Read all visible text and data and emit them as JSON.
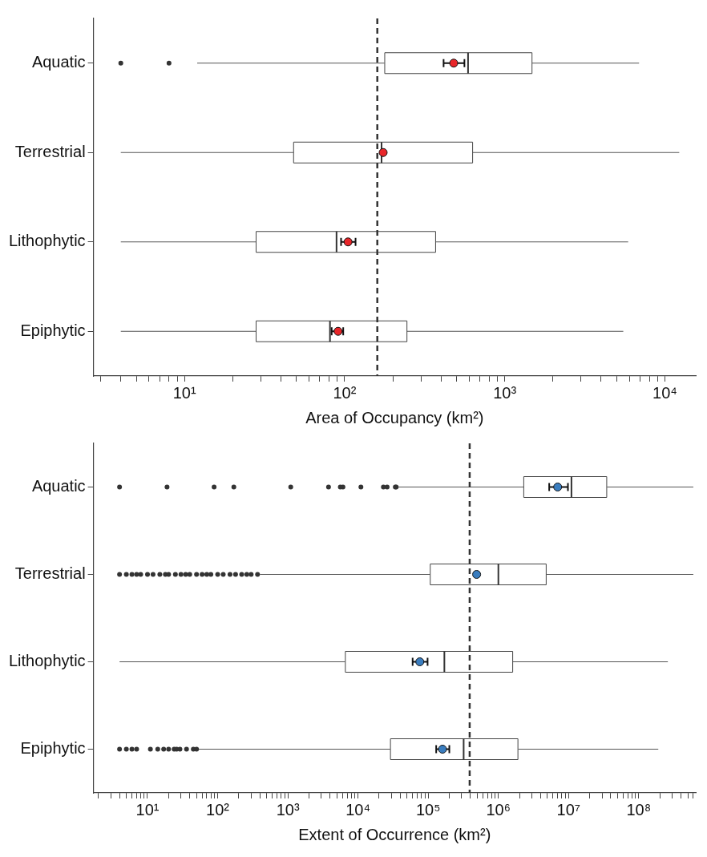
{
  "chart_data": [
    {
      "type": "box",
      "orientation": "horizontal",
      "log": "x",
      "xlabel": "Area of Occupancy (km²)",
      "categories": [
        "Aquatic",
        "Terrestrial",
        "Lithophytic",
        "Epiphytic"
      ],
      "xlim": [
        2.7,
        15600
      ],
      "xticks": [
        {
          "value": 3,
          "label": null
        },
        {
          "value": 4,
          "label": null
        },
        {
          "value": 5,
          "label": null
        },
        {
          "value": 6,
          "label": null
        },
        {
          "value": 7,
          "label": null
        },
        {
          "value": 8,
          "label": null
        },
        {
          "value": 9,
          "label": null
        },
        {
          "value": 10,
          "label": "10¹"
        },
        {
          "value": 20,
          "label": null
        },
        {
          "value": 30,
          "label": null
        },
        {
          "value": 40,
          "label": null
        },
        {
          "value": 50,
          "label": null
        },
        {
          "value": 60,
          "label": null
        },
        {
          "value": 70,
          "label": null
        },
        {
          "value": 80,
          "label": null
        },
        {
          "value": 90,
          "label": null
        },
        {
          "value": 100,
          "label": "10²"
        },
        {
          "value": 200,
          "label": null
        },
        {
          "value": 300,
          "label": null
        },
        {
          "value": 400,
          "label": null
        },
        {
          "value": 500,
          "label": null
        },
        {
          "value": 600,
          "label": null
        },
        {
          "value": 700,
          "label": null
        },
        {
          "value": 800,
          "label": null
        },
        {
          "value": 900,
          "label": null
        },
        {
          "value": 1000,
          "label": "10³"
        },
        {
          "value": 2000,
          "label": null
        },
        {
          "value": 3000,
          "label": null
        },
        {
          "value": 4000,
          "label": null
        },
        {
          "value": 5000,
          "label": null
        },
        {
          "value": 6000,
          "label": null
        },
        {
          "value": 7000,
          "label": null
        },
        {
          "value": 8000,
          "label": null
        },
        {
          "value": 9000,
          "label": null
        },
        {
          "value": 10000,
          "label": "10⁴"
        }
      ],
      "ref_lines": [
        {
          "axis": "x",
          "value": 160,
          "line_style": "dashed",
          "color": "#333333"
        }
      ],
      "series": [
        {
          "type": "box",
          "color": "#ffffff",
          "boxes": [
            {
              "low": 12,
              "q1": 178,
              "median": 590,
              "q3": 1480,
              "high": 6900,
              "outliers": [
                4,
                8
              ]
            },
            {
              "low": 4,
              "q1": 48,
              "median": 170,
              "q3": 630,
              "high": 12300
            },
            {
              "low": 4,
              "q1": 28,
              "median": 89,
              "q3": 370,
              "high": 5900
            },
            {
              "low": 4,
              "q1": 28,
              "median": 81,
              "q3": 245,
              "high": 5500
            }
          ]
        },
        {
          "type": "scatter",
          "color": "#e8262a",
          "x": [
            "Aquatic",
            "Terrestrial",
            "Lithophytic",
            "Epiphytic"
          ],
          "values": [
            480,
            174,
            105,
            91
          ],
          "errors": [
            [
              415,
              560
            ],
            null,
            [
              95,
              117
            ],
            [
              83,
              98
            ]
          ]
        }
      ]
    },
    {
      "type": "box",
      "orientation": "horizontal",
      "log": "x",
      "xlabel": "Extent of Occurrence (km²)",
      "categories": [
        "Aquatic",
        "Terrestrial",
        "Lithophytic",
        "Epiphytic"
      ],
      "xlim": [
        1.7,
        650000000
      ],
      "xticks": [
        {
          "value": 2,
          "label": null
        },
        {
          "value": 3,
          "label": null
        },
        {
          "value": 4,
          "label": null
        },
        {
          "value": 5,
          "label": null
        },
        {
          "value": 6,
          "label": null
        },
        {
          "value": 7,
          "label": null
        },
        {
          "value": 8,
          "label": null
        },
        {
          "value": 9,
          "label": null
        },
        {
          "value": 10,
          "label": "10¹"
        },
        {
          "value": 20,
          "label": null
        },
        {
          "value": 30,
          "label": null
        },
        {
          "value": 40,
          "label": null
        },
        {
          "value": 50,
          "label": null
        },
        {
          "value": 60,
          "label": null
        },
        {
          "value": 70,
          "label": null
        },
        {
          "value": 80,
          "label": null
        },
        {
          "value": 90,
          "label": null
        },
        {
          "value": 100,
          "label": "10²"
        },
        {
          "value": 200,
          "label": null
        },
        {
          "value": 300,
          "label": null
        },
        {
          "value": 400,
          "label": null
        },
        {
          "value": 500,
          "label": null
        },
        {
          "value": 600,
          "label": null
        },
        {
          "value": 700,
          "label": null
        },
        {
          "value": 800,
          "label": null
        },
        {
          "value": 900,
          "label": null
        },
        {
          "value": 1000,
          "label": "10³"
        },
        {
          "value": 2000,
          "label": null
        },
        {
          "value": 3000,
          "label": null
        },
        {
          "value": 4000,
          "label": null
        },
        {
          "value": 5000,
          "label": null
        },
        {
          "value": 6000,
          "label": null
        },
        {
          "value": 7000,
          "label": null
        },
        {
          "value": 8000,
          "label": null
        },
        {
          "value": 9000,
          "label": null
        },
        {
          "value": 10000,
          "label": "10⁴"
        },
        {
          "value": 20000,
          "label": null
        },
        {
          "value": 30000,
          "label": null
        },
        {
          "value": 40000,
          "label": null
        },
        {
          "value": 50000,
          "label": null
        },
        {
          "value": 60000,
          "label": null
        },
        {
          "value": 70000,
          "label": null
        },
        {
          "value": 80000,
          "label": null
        },
        {
          "value": 90000,
          "label": null
        },
        {
          "value": 100000,
          "label": "10⁵"
        },
        {
          "value": 200000,
          "label": null
        },
        {
          "value": 300000,
          "label": null
        },
        {
          "value": 400000,
          "label": null
        },
        {
          "value": 500000,
          "label": null
        },
        {
          "value": 600000,
          "label": null
        },
        {
          "value": 700000,
          "label": null
        },
        {
          "value": 800000,
          "label": null
        },
        {
          "value": 900000,
          "label": null
        },
        {
          "value": 1000000,
          "label": "10⁶"
        },
        {
          "value": 2000000,
          "label": null
        },
        {
          "value": 3000000,
          "label": null
        },
        {
          "value": 4000000,
          "label": null
        },
        {
          "value": 5000000,
          "label": null
        },
        {
          "value": 6000000,
          "label": null
        },
        {
          "value": 7000000,
          "label": null
        },
        {
          "value": 8000000,
          "label": null
        },
        {
          "value": 9000000,
          "label": null
        },
        {
          "value": 10000000,
          "label": "10⁷"
        },
        {
          "value": 20000000,
          "label": null
        },
        {
          "value": 30000000,
          "label": null
        },
        {
          "value": 40000000,
          "label": null
        },
        {
          "value": 50000000,
          "label": null
        },
        {
          "value": 60000000,
          "label": null
        },
        {
          "value": 70000000,
          "label": null
        },
        {
          "value": 80000000,
          "label": null
        },
        {
          "value": 90000000,
          "label": null
        },
        {
          "value": 100000000,
          "label": "10⁸"
        },
        {
          "value": 200000000,
          "label": null
        },
        {
          "value": 300000000,
          "label": null
        },
        {
          "value": 400000000,
          "label": null
        },
        {
          "value": 500000000,
          "label": null
        },
        {
          "value": 600000000,
          "label": null
        }
      ],
      "ref_lines": [
        {
          "axis": "x",
          "value": 390000,
          "line_style": "dashed",
          "color": "#333333"
        }
      ],
      "series": [
        {
          "type": "box",
          "color": "#ffffff",
          "boxes": [
            {
              "low": 37000,
              "q1": 2300000,
              "median": 11000000,
              "q3": 35000000,
              "high": 600000000,
              "outliers": [
                4,
                19,
                89,
                170,
                1100,
                3800,
                5600,
                6100,
                11000,
                23000,
                26000,
                34000,
                35000
              ]
            },
            {
              "low": 400,
              "q1": 107000,
              "median": 1000000,
              "q3": 4800000,
              "high": 600000000,
              "outliers": [
                4,
                5,
                6,
                7,
                8,
                10,
                12,
                15,
                18,
                20,
                25,
                30,
                35,
                40,
                50,
                60,
                70,
                80,
                100,
                120,
                150,
                180,
                220,
                260,
                300,
                370
              ]
            },
            {
              "low": 4,
              "q1": 6600,
              "median": 170000,
              "q3": 1600000,
              "high": 260000000
            },
            {
              "low": 52,
              "q1": 29000,
              "median": 320000,
              "q3": 1900000,
              "high": 190000000,
              "outliers": [
                4,
                5,
                6,
                7,
                11,
                14,
                17,
                20,
                24,
                26,
                29,
                36,
                45,
                50
              ]
            }
          ]
        },
        {
          "type": "scatter",
          "color": "#3a7dbf",
          "x": [
            "Aquatic",
            "Terrestrial",
            "Lithophytic",
            "Epiphytic"
          ],
          "values": [
            7000000,
            490000,
            76000,
            160000
          ],
          "errors": [
            [
              5300000,
              9800000
            ],
            null,
            [
              60000,
              98000
            ],
            [
              130000,
              200000
            ]
          ]
        }
      ]
    }
  ]
}
